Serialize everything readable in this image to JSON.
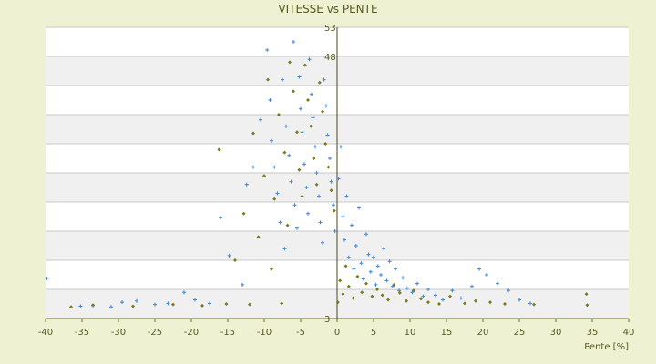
{
  "chart_data": {
    "type": "scatter",
    "title": "VITESSE vs PENTE",
    "xlabel": "Pente [%]",
    "ylabel": "",
    "xlim": [
      -40,
      40
    ],
    "ylim": [
      3,
      53
    ],
    "x_ticks": [
      "-40",
      "-35",
      "-30",
      "-25",
      "-20",
      "-15",
      "-10",
      "-5",
      "0",
      "5",
      "10",
      "15",
      "20",
      "25",
      "30",
      "35",
      "40"
    ],
    "y_tick_labels_visible": [
      "53",
      "48",
      "3"
    ],
    "y_gridlines": [
      3,
      8,
      13,
      18,
      23,
      28,
      33,
      38,
      43,
      48,
      53
    ],
    "grid": true,
    "alternating_band_color": "#f0f0f0",
    "series": [
      {
        "color": "#3a86d6",
        "marker": "plus",
        "points": [
          [
            -39.8,
            9.9
          ],
          [
            -35.2,
            5.1
          ],
          [
            -33.5,
            5.2
          ],
          [
            -31.0,
            5.0
          ],
          [
            -29.5,
            5.8
          ],
          [
            -27.5,
            6.0
          ],
          [
            -25.0,
            5.4
          ],
          [
            -23.2,
            5.6
          ],
          [
            -21.0,
            7.5
          ],
          [
            -19.5,
            6.2
          ],
          [
            -17.5,
            5.6
          ],
          [
            -16.0,
            20.3
          ],
          [
            -14.8,
            13.8
          ],
          [
            -13.0,
            8.8
          ],
          [
            -12.4,
            26.0
          ],
          [
            -11.5,
            29.0
          ],
          [
            -10.5,
            37.1
          ],
          [
            -9.6,
            49.1
          ],
          [
            -9.2,
            40.5
          ],
          [
            -9.0,
            33.5
          ],
          [
            -8.6,
            29.0
          ],
          [
            -8.2,
            24.5
          ],
          [
            -7.8,
            19.5
          ],
          [
            -7.5,
            44.0
          ],
          [
            -7.2,
            15.0
          ],
          [
            -7.0,
            36.0
          ],
          [
            -6.6,
            31.0
          ],
          [
            -6.3,
            26.5
          ],
          [
            -6.0,
            50.5
          ],
          [
            -5.8,
            22.5
          ],
          [
            -5.5,
            18.5
          ],
          [
            -5.2,
            44.5
          ],
          [
            -5.0,
            39.0
          ],
          [
            -4.8,
            35.0
          ],
          [
            -4.5,
            29.5
          ],
          [
            -4.2,
            25.5
          ],
          [
            -4.0,
            21.0
          ],
          [
            -3.8,
            47.5
          ],
          [
            -3.5,
            41.5
          ],
          [
            -3.3,
            37.5
          ],
          [
            -3.0,
            32.5
          ],
          [
            -2.8,
            28.0
          ],
          [
            -2.5,
            24.0
          ],
          [
            -2.3,
            19.5
          ],
          [
            -2.0,
            16.0
          ],
          [
            -1.8,
            44.0
          ],
          [
            -1.5,
            39.5
          ],
          [
            -1.3,
            34.5
          ],
          [
            -1.0,
            30.5
          ],
          [
            -0.8,
            26.5
          ],
          [
            -0.5,
            22.5
          ],
          [
            -0.3,
            18.0
          ],
          [
            0.2,
            27.0
          ],
          [
            0.5,
            32.5
          ],
          [
            0.8,
            20.5
          ],
          [
            1.0,
            16.5
          ],
          [
            1.3,
            24.0
          ],
          [
            1.6,
            13.5
          ],
          [
            2.0,
            19.0
          ],
          [
            2.3,
            11.5
          ],
          [
            2.6,
            15.5
          ],
          [
            3.0,
            22.0
          ],
          [
            3.3,
            12.5
          ],
          [
            3.6,
            9.8
          ],
          [
            4.0,
            17.5
          ],
          [
            4.3,
            14.0
          ],
          [
            4.6,
            11.0
          ],
          [
            5.0,
            13.5
          ],
          [
            5.3,
            8.8
          ],
          [
            5.6,
            12.0
          ],
          [
            6.0,
            10.5
          ],
          [
            6.4,
            15.0
          ],
          [
            6.8,
            9.5
          ],
          [
            7.2,
            12.8
          ],
          [
            7.6,
            8.5
          ],
          [
            8.0,
            11.5
          ],
          [
            8.5,
            7.8
          ],
          [
            9.0,
            10.0
          ],
          [
            9.6,
            8.2
          ],
          [
            10.3,
            7.5
          ],
          [
            11.0,
            9.0
          ],
          [
            11.8,
            6.8
          ],
          [
            12.5,
            8.0
          ],
          [
            13.5,
            7.0
          ],
          [
            14.5,
            6.2
          ],
          [
            15.8,
            7.8
          ],
          [
            17.0,
            6.5
          ],
          [
            18.5,
            8.5
          ],
          [
            19.5,
            11.5
          ],
          [
            20.5,
            10.5
          ],
          [
            22.0,
            9.0
          ],
          [
            23.5,
            7.8
          ],
          [
            25.0,
            6.2
          ],
          [
            26.5,
            5.6
          ]
        ]
      },
      {
        "color": "#7a7a1a",
        "marker": "diamond",
        "points": [
          [
            -36.5,
            5.0
          ],
          [
            -33.5,
            5.3
          ],
          [
            -28.0,
            5.1
          ],
          [
            -22.5,
            5.4
          ],
          [
            -18.5,
            5.2
          ],
          [
            -16.2,
            32.0
          ],
          [
            -15.2,
            5.5
          ],
          [
            -14.0,
            13.0
          ],
          [
            -12.8,
            21.0
          ],
          [
            -12.0,
            5.4
          ],
          [
            -11.5,
            34.8
          ],
          [
            -10.8,
            17.0
          ],
          [
            -10.0,
            27.5
          ],
          [
            -9.5,
            44.0
          ],
          [
            -9.0,
            11.5
          ],
          [
            -8.6,
            23.5
          ],
          [
            -8.0,
            38.0
          ],
          [
            -7.6,
            5.6
          ],
          [
            -7.2,
            31.5
          ],
          [
            -6.8,
            19.0
          ],
          [
            -6.5,
            47.0
          ],
          [
            -6.0,
            42.0
          ],
          [
            -5.5,
            35.0
          ],
          [
            -5.2,
            28.5
          ],
          [
            -4.8,
            24.0
          ],
          [
            -4.4,
            46.5
          ],
          [
            -4.0,
            40.5
          ],
          [
            -3.6,
            36.0
          ],
          [
            -3.2,
            30.5
          ],
          [
            -2.8,
            26.0
          ],
          [
            -2.4,
            43.5
          ],
          [
            -2.0,
            38.5
          ],
          [
            -1.6,
            33.0
          ],
          [
            -1.2,
            29.0
          ],
          [
            -0.8,
            25.0
          ],
          [
            -0.4,
            21.5
          ],
          [
            0.1,
            5.8
          ],
          [
            0.4,
            9.5
          ],
          [
            0.8,
            7.2
          ],
          [
            1.2,
            12.0
          ],
          [
            1.6,
            8.5
          ],
          [
            2.2,
            6.5
          ],
          [
            2.8,
            10.2
          ],
          [
            3.4,
            7.5
          ],
          [
            4.0,
            9.0
          ],
          [
            4.8,
            6.8
          ],
          [
            5.5,
            8.0
          ],
          [
            6.2,
            7.0
          ],
          [
            7.0,
            6.2
          ],
          [
            7.8,
            8.8
          ],
          [
            8.6,
            7.4
          ],
          [
            9.5,
            6.0
          ],
          [
            10.5,
            7.8
          ],
          [
            11.5,
            6.4
          ],
          [
            12.5,
            5.8
          ],
          [
            14.0,
            5.5
          ],
          [
            15.5,
            6.8
          ],
          [
            17.5,
            5.6
          ],
          [
            19.0,
            6.0
          ],
          [
            21.0,
            5.8
          ],
          [
            23.0,
            5.5
          ],
          [
            27.0,
            5.4
          ],
          [
            34.2,
            7.2
          ],
          [
            34.3,
            5.3
          ]
        ]
      }
    ]
  }
}
